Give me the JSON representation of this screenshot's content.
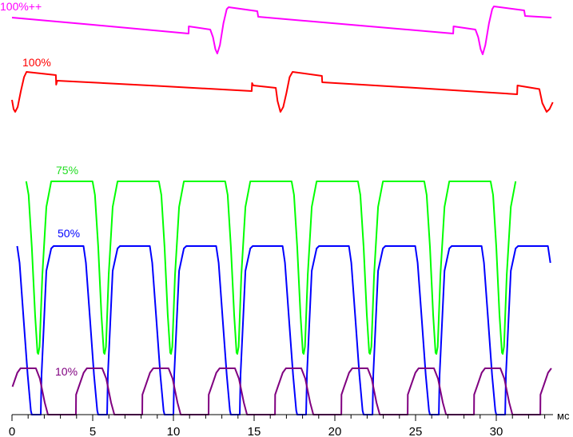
{
  "chart_data": {
    "type": "line",
    "title": "",
    "xlabel": "мс",
    "ylabel": "",
    "xlim": [
      0,
      33.5
    ],
    "ylim": [
      0,
      104
    ],
    "grid": false,
    "x_ticks": [
      0,
      5,
      10,
      15,
      20,
      25,
      30
    ],
    "x_tick_labels": [
      "0",
      "5",
      "10",
      "15",
      "20",
      "25",
      "30"
    ],
    "minor_tick_step": 1,
    "series": [
      {
        "name": "100%++",
        "color": "#ff00ff",
        "points": [
          [
            0,
            99.4
          ],
          [
            5,
            97.6
          ],
          [
            10.94,
            95.4
          ],
          [
            10.95,
            97.2
          ],
          [
            12.28,
            96.4
          ],
          [
            12.45,
            94.5
          ],
          [
            12.6,
            91.5
          ],
          [
            12.72,
            90.4
          ],
          [
            12.88,
            92.5
          ],
          [
            13.1,
            98
          ],
          [
            13.3,
            101.5
          ],
          [
            13.42,
            102
          ],
          [
            15.2,
            101
          ],
          [
            15.25,
            99.6
          ],
          [
            21,
            97.6
          ],
          [
            27.33,
            95.4
          ],
          [
            27.35,
            97.2
          ],
          [
            28.71,
            96.4
          ],
          [
            28.88,
            94.5
          ],
          [
            29.03,
            91.5
          ],
          [
            29.16,
            90.2
          ],
          [
            29.32,
            92.5
          ],
          [
            29.55,
            98
          ],
          [
            29.75,
            101.5
          ],
          [
            29.85,
            102.2
          ],
          [
            31.73,
            101.2
          ],
          [
            31.78,
            99.8
          ],
          [
            33.42,
            99.4
          ]
        ]
      },
      {
        "name": "100%",
        "color": "#ff0000",
        "points": [
          [
            0,
            78.8
          ],
          [
            0.1,
            76.5
          ],
          [
            0.2,
            75.8
          ],
          [
            0.35,
            77
          ],
          [
            0.55,
            81
          ],
          [
            0.75,
            84.5
          ],
          [
            0.9,
            85.8
          ],
          [
            2.72,
            85
          ],
          [
            2.74,
            82.6
          ],
          [
            2.8,
            83.6
          ],
          [
            9,
            82.3
          ],
          [
            14.85,
            81
          ],
          [
            14.87,
            83
          ],
          [
            14.95,
            82.4
          ],
          [
            16.34,
            81.8
          ],
          [
            16.45,
            78.5
          ],
          [
            16.63,
            75.8
          ],
          [
            16.8,
            77
          ],
          [
            17.0,
            80.5
          ],
          [
            17.2,
            84.5
          ],
          [
            17.38,
            85.8
          ],
          [
            19.2,
            84.8
          ],
          [
            19.22,
            83.2
          ],
          [
            25,
            81.8
          ],
          [
            31.29,
            80.2
          ],
          [
            31.31,
            82.4
          ],
          [
            32.67,
            81.5
          ],
          [
            32.85,
            78
          ],
          [
            33.12,
            75.8
          ],
          [
            33.3,
            76.5
          ],
          [
            33.5,
            78.2
          ]
        ]
      },
      {
        "name": "75%",
        "color": "#00ff00",
        "periodic": {
          "period": 4.11,
          "t0": 1.63,
          "shape": [
            [
              -0.75,
              58.4
            ],
            [
              -0.6,
              55
            ],
            [
              -0.4,
              42
            ],
            [
              -0.2,
              25
            ],
            [
              -0.05,
              15.5
            ],
            [
              0,
              15.2
            ],
            [
              0.08,
              17
            ],
            [
              0.25,
              35
            ],
            [
              0.5,
              52
            ],
            [
              0.8,
              58.4
            ],
            [
              3.36,
              58.4
            ]
          ]
        }
      },
      {
        "name": "50%",
        "color": "#0000ff",
        "periodic": {
          "period": 4.11,
          "t0": 1.63,
          "shape": [
            [
              -0.4,
              0
            ],
            [
              0.15,
              0
            ],
            [
              0.2,
              10
            ],
            [
              0.5,
              36
            ],
            [
              0.8,
              41.6
            ],
            [
              0.95,
              42.2
            ],
            [
              2.8,
              42.2
            ],
            [
              2.95,
              38
            ],
            [
              3.2,
              24
            ],
            [
              3.45,
              10
            ],
            [
              3.65,
              1
            ],
            [
              3.71,
              0
            ]
          ]
        }
      },
      {
        "name": "10%",
        "color": "#800080",
        "periodic": {
          "period": 4.11,
          "t0": 1.63,
          "shape": [
            [
              -1.78,
              0
            ],
            [
              -1.77,
              5
            ],
            [
              -1.6,
              7
            ],
            [
              -1.3,
              10.5
            ],
            [
              -1.1,
              11.6
            ],
            [
              -0.15,
              11.6
            ],
            [
              0.1,
              9
            ],
            [
              0.4,
              3
            ],
            [
              0.6,
              0
            ],
            [
              2.33,
              0
            ]
          ]
        }
      }
    ]
  }
}
